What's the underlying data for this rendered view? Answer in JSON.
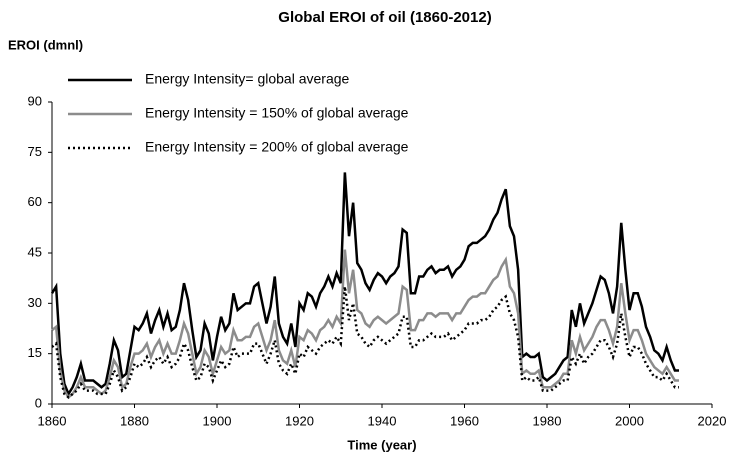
{
  "chart_data": {
    "type": "line",
    "title": "Global EROI of oil (1860-2012)",
    "y_label": "EROI (dmnl)",
    "x_label": "Time (year)",
    "xlim": [
      1860,
      2020
    ],
    "xticks": [
      1860,
      1880,
      1900,
      1920,
      1940,
      1960,
      1980,
      2000,
      2020
    ],
    "ylim": [
      0,
      90
    ],
    "yticks": [
      0,
      15,
      30,
      45,
      60,
      75,
      90
    ],
    "grid": false,
    "legend": "top-left",
    "x": [
      1860,
      1861,
      1862,
      1863,
      1864,
      1865,
      1866,
      1867,
      1868,
      1869,
      1870,
      1871,
      1872,
      1873,
      1874,
      1875,
      1876,
      1877,
      1878,
      1879,
      1880,
      1881,
      1882,
      1883,
      1884,
      1885,
      1886,
      1887,
      1888,
      1889,
      1890,
      1891,
      1892,
      1893,
      1894,
      1895,
      1896,
      1897,
      1898,
      1899,
      1900,
      1901,
      1902,
      1903,
      1904,
      1905,
      1906,
      1907,
      1908,
      1909,
      1910,
      1911,
      1912,
      1913,
      1914,
      1915,
      1916,
      1917,
      1918,
      1919,
      1920,
      1921,
      1922,
      1923,
      1924,
      1925,
      1926,
      1927,
      1928,
      1929,
      1930,
      1931,
      1932,
      1933,
      1934,
      1935,
      1936,
      1937,
      1938,
      1939,
      1940,
      1941,
      1942,
      1943,
      1944,
      1945,
      1946,
      1947,
      1948,
      1949,
      1950,
      1951,
      1952,
      1953,
      1954,
      1955,
      1956,
      1957,
      1958,
      1959,
      1960,
      1961,
      1962,
      1963,
      1964,
      1965,
      1966,
      1967,
      1968,
      1969,
      1970,
      1971,
      1972,
      1973,
      1974,
      1975,
      1976,
      1977,
      1978,
      1979,
      1980,
      1981,
      1982,
      1983,
      1984,
      1985,
      1986,
      1987,
      1988,
      1989,
      1990,
      1991,
      1992,
      1993,
      1994,
      1995,
      1996,
      1997,
      1998,
      1999,
      2000,
      2001,
      2002,
      2003,
      2004,
      2005,
      2006,
      2007,
      2008,
      2009,
      2010,
      2011,
      2012
    ],
    "series": [
      {
        "name": "Energy Intensity= global average",
        "color": "#000000",
        "line_style": "solid",
        "values": [
          33,
          35,
          15,
          6,
          3,
          5,
          8,
          12,
          7,
          7,
          7,
          6,
          5,
          6,
          12,
          19,
          16,
          8,
          9,
          16,
          23,
          22,
          24,
          27,
          21,
          25,
          28,
          23,
          27,
          22,
          23,
          28,
          36,
          31,
          22,
          14,
          16,
          24,
          21,
          13,
          20,
          26,
          22,
          24,
          33,
          28,
          29,
          30,
          30,
          35,
          36,
          30,
          24,
          29,
          38,
          24,
          20,
          18,
          24,
          17,
          30,
          28,
          33,
          32,
          29,
          33,
          35,
          38,
          35,
          39,
          36,
          69,
          50,
          60,
          42,
          40,
          36,
          34,
          37,
          39,
          38,
          36,
          38,
          39,
          41,
          52,
          51,
          33,
          33,
          38,
          38,
          40,
          41,
          39,
          40,
          40,
          41,
          38,
          40,
          41,
          43,
          47,
          48,
          48,
          49,
          50,
          52,
          55,
          57,
          61,
          64,
          53,
          50,
          40,
          14,
          15,
          14,
          14,
          15,
          8,
          7,
          8,
          9,
          11,
          13,
          14,
          28,
          23,
          30,
          24,
          27,
          30,
          34,
          38,
          37,
          33,
          27,
          35,
          54,
          40,
          28,
          33,
          33,
          29,
          23,
          20,
          16,
          15,
          13,
          17,
          13,
          10,
          10
        ]
      },
      {
        "name": "Energy Intensity = 150% of global average",
        "color": "#8c8c8c",
        "line_style": "solid",
        "values": [
          22,
          23,
          10,
          4,
          2,
          3,
          5,
          8,
          5,
          5,
          5,
          4,
          3,
          4,
          8,
          13,
          11,
          5,
          6,
          11,
          15,
          15,
          16,
          18,
          14,
          17,
          19,
          15,
          18,
          15,
          15,
          19,
          24,
          21,
          15,
          9,
          11,
          16,
          14,
          9,
          13,
          17,
          15,
          16,
          22,
          19,
          19,
          20,
          20,
          23,
          24,
          20,
          16,
          19,
          25,
          16,
          13,
          12,
          16,
          11,
          20,
          19,
          22,
          21,
          19,
          22,
          23,
          25,
          23,
          26,
          24,
          46,
          33,
          40,
          28,
          27,
          24,
          23,
          25,
          26,
          25,
          24,
          25,
          26,
          27,
          35,
          34,
          22,
          22,
          25,
          25,
          27,
          27,
          26,
          27,
          27,
          27,
          25,
          27,
          27,
          29,
          31,
          32,
          32,
          33,
          33,
          35,
          37,
          38,
          41,
          43,
          35,
          33,
          27,
          9,
          10,
          9,
          9,
          10,
          5,
          5,
          5,
          6,
          7,
          9,
          9,
          19,
          15,
          20,
          16,
          18,
          20,
          23,
          25,
          25,
          22,
          18,
          23,
          36,
          27,
          19,
          22,
          22,
          19,
          15,
          13,
          11,
          10,
          9,
          11,
          9,
          7,
          7
        ]
      },
      {
        "name": "Energy Intensity = 200% of global average",
        "color": "#000000",
        "line_style": "dotted",
        "values": [
          17,
          18,
          8,
          3,
          2,
          3,
          4,
          6,
          4,
          4,
          4,
          3,
          3,
          3,
          6,
          10,
          8,
          4,
          5,
          8,
          12,
          11,
          12,
          14,
          11,
          13,
          14,
          12,
          14,
          11,
          12,
          14,
          18,
          16,
          11,
          7,
          8,
          12,
          11,
          7,
          10,
          13,
          11,
          12,
          17,
          14,
          15,
          15,
          15,
          18,
          18,
          15,
          12,
          15,
          19,
          12,
          10,
          9,
          12,
          9,
          15,
          14,
          17,
          16,
          15,
          17,
          18,
          19,
          18,
          20,
          18,
          35,
          25,
          30,
          21,
          20,
          18,
          17,
          19,
          20,
          19,
          18,
          19,
          20,
          21,
          26,
          26,
          17,
          17,
          19,
          19,
          20,
          21,
          20,
          20,
          20,
          21,
          19,
          20,
          21,
          22,
          24,
          24,
          24,
          25,
          25,
          26,
          28,
          29,
          31,
          32,
          27,
          25,
          20,
          7,
          8,
          7,
          7,
          8,
          4,
          4,
          4,
          5,
          6,
          7,
          7,
          14,
          12,
          15,
          12,
          14,
          15,
          17,
          19,
          19,
          17,
          14,
          18,
          27,
          20,
          14,
          17,
          17,
          15,
          12,
          10,
          8,
          8,
          7,
          9,
          7,
          5,
          5
        ]
      }
    ]
  }
}
